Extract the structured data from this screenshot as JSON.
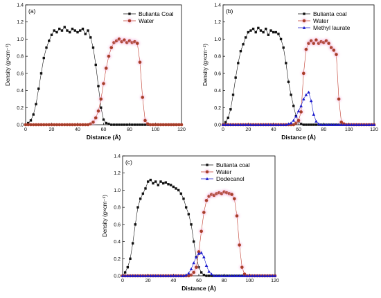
{
  "colors": {
    "black": "#111111",
    "red": "#c0392b",
    "red_fill": "#a0412a",
    "blue": "#1a1acc",
    "glow": "#f3bde0",
    "frame": "#000000"
  },
  "chart_data": [
    {
      "type": "line",
      "panel_tag": "(a)",
      "xlabel": "Distance (Å)",
      "ylabel": "Density (g×cm⁻³)",
      "xlim": [
        0,
        120
      ],
      "ylim": [
        0,
        1.4
      ],
      "xticks": [
        "0",
        "20",
        "40",
        "60",
        "80",
        "100",
        "120"
      ],
      "yticks": [
        "0.0",
        "0.2",
        "0.4",
        "0.6",
        "0.8",
        "1.0",
        "1.2",
        "1.4"
      ],
      "legend_placement": "top-right",
      "series": [
        {
          "name": "Bulianta Coal",
          "color": "#111111",
          "marker": "square",
          "x": [
            0,
            2,
            4,
            6,
            8,
            10,
            12,
            14,
            16,
            18,
            20,
            22,
            24,
            26,
            28,
            30,
            32,
            34,
            36,
            38,
            40,
            42,
            44,
            46,
            48,
            50,
            52,
            54,
            56,
            58,
            60,
            62,
            64,
            66,
            68,
            70,
            72,
            74,
            76,
            78,
            80,
            82,
            84,
            86,
            88,
            90,
            92,
            94,
            96,
            98,
            100,
            102,
            104,
            106,
            108,
            110,
            112,
            114,
            116,
            118,
            120
          ],
          "y": [
            0.0,
            0.02,
            0.05,
            0.12,
            0.24,
            0.42,
            0.6,
            0.78,
            0.9,
            0.98,
            1.05,
            1.1,
            1.08,
            1.12,
            1.1,
            1.14,
            1.1,
            1.08,
            1.12,
            1.1,
            1.08,
            1.1,
            1.12,
            1.06,
            1.1,
            1.02,
            0.9,
            0.7,
            0.45,
            0.2,
            0.06,
            0.02,
            0.01,
            0,
            0,
            0,
            0,
            0,
            0,
            0,
            0,
            0,
            0,
            0,
            0,
            0,
            0,
            0,
            0,
            0,
            0,
            0,
            0,
            0,
            0,
            0,
            0,
            0,
            0,
            0,
            0
          ]
        },
        {
          "name": "Water",
          "color": "#c0392b",
          "marker": "circle",
          "x": [
            0,
            2,
            4,
            6,
            8,
            10,
            12,
            14,
            16,
            18,
            20,
            22,
            24,
            26,
            28,
            30,
            32,
            34,
            36,
            38,
            40,
            42,
            44,
            46,
            48,
            50,
            52,
            54,
            56,
            58,
            60,
            62,
            64,
            66,
            68,
            70,
            72,
            74,
            76,
            78,
            80,
            82,
            84,
            86,
            88,
            90,
            92,
            94,
            96,
            98,
            100,
            102,
            104,
            106,
            108,
            110,
            112,
            114,
            116,
            118,
            120
          ],
          "y": [
            0,
            0,
            0,
            0,
            0,
            0,
            0,
            0,
            0,
            0,
            0,
            0,
            0,
            0,
            0,
            0,
            0,
            0,
            0,
            0,
            0,
            0,
            0,
            0,
            0,
            0.01,
            0.03,
            0.08,
            0.16,
            0.3,
            0.48,
            0.66,
            0.8,
            0.9,
            0.96,
            0.98,
            1.0,
            0.97,
            0.99,
            0.96,
            0.98,
            0.96,
            0.97,
            0.95,
            0.73,
            0.32,
            0.05,
            0.01,
            0,
            0,
            0,
            0,
            0,
            0,
            0,
            0,
            0,
            0,
            0,
            0,
            0
          ]
        }
      ]
    },
    {
      "type": "line",
      "panel_tag": "(b)",
      "xlabel": "Distance (Å)",
      "ylabel": "Density (g×cm⁻³)",
      "xlim": [
        0,
        120
      ],
      "ylim": [
        0,
        1.4
      ],
      "xticks": [
        "0",
        "20",
        "40",
        "60",
        "80",
        "100",
        "120"
      ],
      "yticks": [
        "0.0",
        "0.2",
        "0.4",
        "0.6",
        "0.8",
        "1.0",
        "1.2",
        "1.4"
      ],
      "legend_placement": "top-right",
      "series": [
        {
          "name": "Bulianta coal",
          "color": "#111111",
          "marker": "square",
          "x": [
            0,
            2,
            4,
            6,
            8,
            10,
            12,
            14,
            16,
            18,
            20,
            22,
            24,
            26,
            28,
            30,
            32,
            34,
            36,
            38,
            40,
            42,
            44,
            46,
            48,
            50,
            52,
            54,
            56,
            58,
            60,
            62,
            64,
            66,
            68,
            70,
            72,
            74,
            76,
            78,
            80,
            82,
            84,
            86,
            88,
            90,
            92,
            94,
            96,
            98,
            100,
            102,
            104,
            106,
            108,
            110,
            112,
            114,
            116,
            118,
            120
          ],
          "y": [
            0.0,
            0.03,
            0.08,
            0.18,
            0.35,
            0.55,
            0.72,
            0.86,
            0.94,
            1.02,
            1.08,
            1.1,
            1.12,
            1.08,
            1.13,
            1.1,
            1.08,
            1.12,
            1.05,
            1.1,
            1.08,
            1.08,
            1.06,
            1.0,
            0.9,
            0.72,
            0.5,
            0.35,
            0.22,
            0.1,
            0.04,
            0.01,
            0.0,
            0,
            0,
            0,
            0,
            0,
            0,
            0,
            0,
            0,
            0,
            0,
            0,
            0,
            0,
            0,
            0,
            0,
            0,
            0,
            0,
            0,
            0,
            0,
            0,
            0,
            0,
            0,
            0
          ]
        },
        {
          "name": "Water",
          "color": "#c0392b",
          "marker": "circle",
          "x": [
            0,
            2,
            4,
            6,
            8,
            10,
            12,
            14,
            16,
            18,
            20,
            22,
            24,
            26,
            28,
            30,
            32,
            34,
            36,
            38,
            40,
            42,
            44,
            46,
            48,
            50,
            52,
            54,
            56,
            58,
            60,
            62,
            64,
            66,
            68,
            70,
            72,
            74,
            76,
            78,
            80,
            82,
            84,
            86,
            88,
            90,
            92,
            94,
            96,
            98,
            100,
            102,
            104,
            106,
            108,
            110,
            112,
            114,
            116,
            118,
            120
          ],
          "y": [
            0,
            0,
            0,
            0,
            0,
            0,
            0,
            0,
            0,
            0,
            0,
            0,
            0,
            0,
            0,
            0,
            0,
            0,
            0,
            0,
            0,
            0,
            0,
            0,
            0,
            0,
            0,
            0,
            0,
            0.02,
            0.05,
            0.15,
            0.6,
            0.88,
            0.95,
            0.98,
            0.95,
            0.99,
            0.95,
            0.97,
            0.96,
            0.98,
            0.95,
            0.9,
            0.87,
            0.82,
            0.3,
            0.03,
            0.01,
            0,
            0,
            0,
            0,
            0,
            0,
            0,
            0,
            0,
            0,
            0,
            0
          ]
        },
        {
          "name": "Methyl laurate",
          "color": "#1a1acc",
          "marker": "triangle",
          "x": [
            0,
            2,
            4,
            6,
            8,
            10,
            12,
            14,
            16,
            18,
            20,
            22,
            24,
            26,
            28,
            30,
            32,
            34,
            36,
            38,
            40,
            42,
            44,
            46,
            48,
            50,
            52,
            54,
            56,
            58,
            60,
            62,
            64,
            66,
            68,
            70,
            72,
            74,
            76,
            78,
            80,
            82,
            84,
            86,
            88,
            90,
            92,
            94,
            96,
            98,
            100,
            102,
            104,
            106,
            108,
            110,
            112,
            114,
            116,
            118,
            120
          ],
          "y": [
            0,
            0,
            0,
            0,
            0,
            0,
            0,
            0,
            0,
            0,
            0,
            0,
            0,
            0,
            0,
            0,
            0,
            0,
            0,
            0,
            0,
            0,
            0,
            0,
            0,
            0,
            0.01,
            0.02,
            0.05,
            0.1,
            0.16,
            0.22,
            0.3,
            0.35,
            0.38,
            0.28,
            0.12,
            0.04,
            0.01,
            0,
            0,
            0,
            0,
            0,
            0,
            0,
            0,
            0,
            0,
            0,
            0,
            0,
            0,
            0,
            0,
            0,
            0,
            0,
            0,
            0,
            0
          ]
        }
      ]
    },
    {
      "type": "line",
      "panel_tag": "(c)",
      "xlabel": "Distance (Å)",
      "ylabel": "Density (g×cm⁻³)",
      "xlim": [
        0,
        120
      ],
      "ylim": [
        0,
        1.4
      ],
      "xticks": [
        "0",
        "20",
        "40",
        "60",
        "80",
        "100",
        "120"
      ],
      "yticks": [
        "0.0",
        "0.2",
        "0.4",
        "0.6",
        "0.8",
        "1.0",
        "1.2",
        "1.4"
      ],
      "legend_placement": "top-right",
      "series": [
        {
          "name": "Bulianta coal",
          "color": "#111111",
          "marker": "square",
          "x": [
            0,
            2,
            4,
            6,
            8,
            10,
            12,
            14,
            16,
            18,
            20,
            22,
            24,
            26,
            28,
            30,
            32,
            34,
            36,
            38,
            40,
            42,
            44,
            46,
            48,
            50,
            52,
            54,
            56,
            58,
            60,
            62,
            64,
            66,
            68,
            70,
            72,
            74,
            76,
            78,
            80,
            82,
            84,
            86,
            88,
            90,
            92,
            94,
            96,
            98,
            100,
            102,
            104,
            106,
            108,
            110,
            112,
            114,
            116,
            118,
            120
          ],
          "y": [
            0.0,
            0.04,
            0.1,
            0.2,
            0.38,
            0.6,
            0.8,
            0.9,
            0.96,
            1.02,
            1.1,
            1.12,
            1.08,
            1.1,
            1.06,
            1.1,
            1.08,
            1.09,
            1.07,
            1.06,
            1.04,
            1.02,
            1.0,
            0.96,
            0.9,
            0.8,
            0.72,
            0.6,
            0.4,
            0.22,
            0.1,
            0.04,
            0.01,
            0,
            0,
            0,
            0,
            0,
            0,
            0,
            0,
            0,
            0,
            0,
            0,
            0,
            0,
            0,
            0,
            0,
            0,
            0,
            0,
            0,
            0,
            0,
            0,
            0,
            0,
            0,
            0
          ]
        },
        {
          "name": "Water",
          "color": "#c0392b",
          "marker": "circle",
          "x": [
            0,
            2,
            4,
            6,
            8,
            10,
            12,
            14,
            16,
            18,
            20,
            22,
            24,
            26,
            28,
            30,
            32,
            34,
            36,
            38,
            40,
            42,
            44,
            46,
            48,
            50,
            52,
            54,
            56,
            58,
            60,
            62,
            64,
            66,
            68,
            70,
            72,
            74,
            76,
            78,
            80,
            82,
            84,
            86,
            88,
            90,
            92,
            94,
            96,
            98,
            100,
            102,
            104,
            106,
            108,
            110,
            112,
            114,
            116,
            118,
            120
          ],
          "y": [
            0,
            0,
            0,
            0,
            0,
            0,
            0,
            0,
            0,
            0,
            0,
            0,
            0,
            0,
            0,
            0,
            0,
            0,
            0,
            0,
            0,
            0,
            0,
            0,
            0,
            0,
            0,
            0.01,
            0.04,
            0.1,
            0.28,
            0.52,
            0.74,
            0.88,
            0.93,
            0.95,
            0.94,
            0.96,
            0.97,
            0.96,
            0.98,
            0.97,
            0.96,
            0.95,
            0.9,
            0.7,
            0.36,
            0.1,
            0.02,
            0,
            0,
            0,
            0,
            0,
            0,
            0,
            0,
            0,
            0,
            0,
            0
          ]
        },
        {
          "name": "Dodecanol",
          "color": "#1a1acc",
          "marker": "triangle",
          "x": [
            0,
            2,
            4,
            6,
            8,
            10,
            12,
            14,
            16,
            18,
            20,
            22,
            24,
            26,
            28,
            30,
            32,
            34,
            36,
            38,
            40,
            42,
            44,
            46,
            48,
            50,
            52,
            54,
            56,
            58,
            60,
            62,
            64,
            66,
            68,
            70,
            72,
            74,
            76,
            78,
            80,
            82,
            84,
            86,
            88,
            90,
            92,
            94,
            96,
            98,
            100,
            102,
            104,
            106,
            108,
            110,
            112,
            114,
            116,
            118,
            120
          ],
          "y": [
            0,
            0,
            0,
            0,
            0,
            0,
            0,
            0,
            0,
            0,
            0,
            0,
            0,
            0,
            0,
            0,
            0,
            0,
            0,
            0,
            0,
            0,
            0,
            0,
            0,
            0.01,
            0.03,
            0.08,
            0.15,
            0.22,
            0.26,
            0.27,
            0.22,
            0.12,
            0.05,
            0.02,
            0.0,
            0,
            0,
            0,
            0,
            0,
            0,
            0,
            0,
            0,
            0,
            0,
            0,
            0,
            0,
            0,
            0,
            0,
            0,
            0,
            0,
            0,
            0,
            0,
            0
          ]
        }
      ]
    }
  ]
}
